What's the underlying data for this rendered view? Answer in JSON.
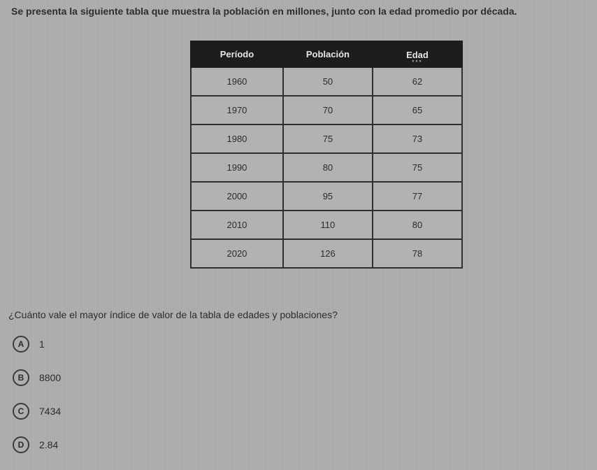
{
  "intro_text": "Se presenta la siguiente tabla que muestra la población en millones, junto con la edad promedio por década.",
  "table": {
    "columns": [
      "Período",
      "Población",
      "Edad"
    ],
    "column_widths": [
      "34%",
      "33%",
      "33%"
    ],
    "header_bg": "#1c1d1c",
    "header_fg": "#e6e7e6",
    "border_color": "#2e2f2e",
    "cell_bg": "#b1b3b2",
    "cell_fg": "#2b2c2b",
    "header_fontsize": 13,
    "cell_fontsize": 13,
    "rows": [
      [
        "1960",
        "50",
        "62"
      ],
      [
        "1970",
        "70",
        "65"
      ],
      [
        "1980",
        "75",
        "73"
      ],
      [
        "1990",
        "80",
        "75"
      ],
      [
        "2000",
        "95",
        "77"
      ],
      [
        "2010",
        "110",
        "80"
      ],
      [
        "2020",
        "126",
        "78"
      ]
    ]
  },
  "question_text": "¿Cuánto vale el mayor índice de valor de la tabla de edades y poblaciones?",
  "options": [
    {
      "letter": "A",
      "label": "1"
    },
    {
      "letter": "B",
      "label": "8800"
    },
    {
      "letter": "C",
      "label": "7434"
    },
    {
      "letter": "D",
      "label": "2.84"
    }
  ],
  "page_bg": "#aeb0af",
  "text_color": "#2b2c2b",
  "option_circle_border": "#3a3b3a"
}
